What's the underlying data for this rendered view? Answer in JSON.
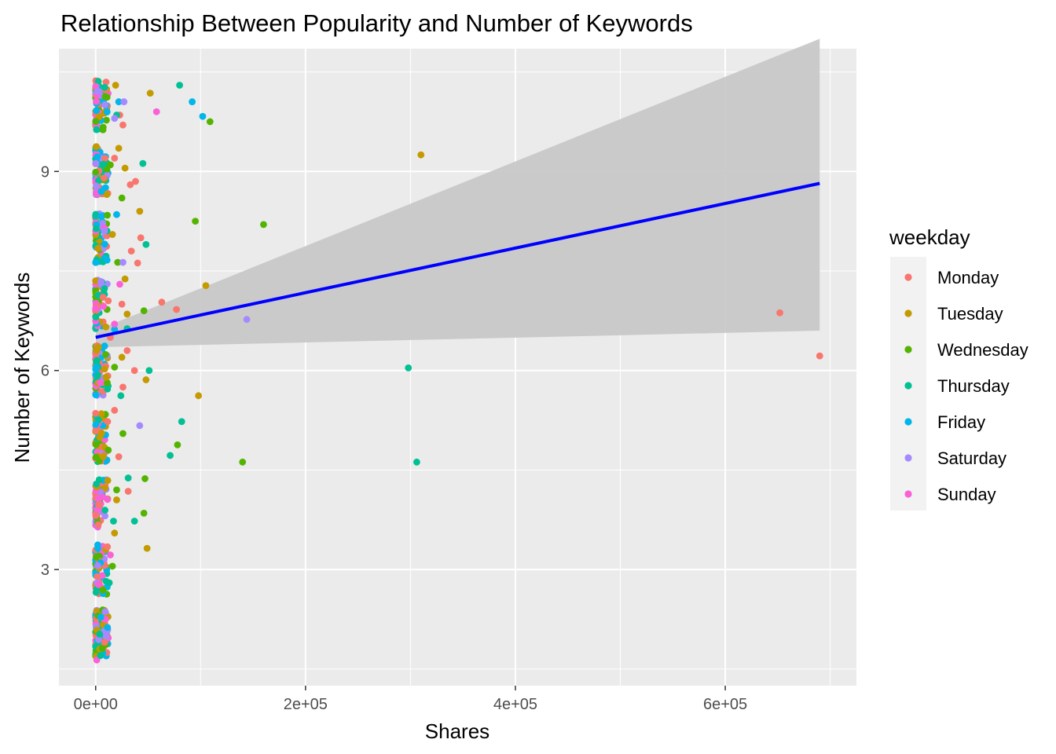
{
  "chart_data": {
    "type": "scatter",
    "title": "Relationship Between Popularity and Number of Keywords",
    "xlabel": "Shares",
    "ylabel": "Number of Keywords",
    "xlim": [
      -35000,
      725000
    ],
    "ylim": [
      1.25,
      10.85
    ],
    "x_ticks": [
      {
        "value": 0,
        "label": "0e+00"
      },
      {
        "value": 200000,
        "label": "2e+05"
      },
      {
        "value": 400000,
        "label": "4e+05"
      },
      {
        "value": 600000,
        "label": "6e+05"
      }
    ],
    "y_ticks": [
      {
        "value": 3,
        "label": "3"
      },
      {
        "value": 6,
        "label": "6"
      },
      {
        "value": 9,
        "label": "9"
      }
    ],
    "grid": true,
    "legend": {
      "title": "weekday",
      "placement": "right",
      "items": [
        {
          "label": "Monday",
          "color": "#F8766D"
        },
        {
          "label": "Tuesday",
          "color": "#C49A00"
        },
        {
          "label": "Wednesday",
          "color": "#53B400"
        },
        {
          "label": "Thursday",
          "color": "#00C094"
        },
        {
          "label": "Friday",
          "color": "#00B6EB"
        },
        {
          "label": "Saturday",
          "color": "#A58AFF"
        },
        {
          "label": "Sunday",
          "color": "#FB61D7"
        }
      ]
    },
    "trend_line": {
      "color": "#0000FF",
      "x": [
        0,
        690000
      ],
      "y": [
        6.5,
        8.82
      ]
    },
    "confidence_band": {
      "color": "#C8C8C8",
      "x": [
        0,
        690000
      ],
      "upper": [
        6.6,
        11.0
      ],
      "lower": [
        6.35,
        6.6
      ]
    },
    "dense_columns": [
      {
        "x_min": 0,
        "x_max": 12000,
        "y_min": 1.6,
        "y_max": 10.4
      }
    ],
    "series": [
      {
        "name": "Monday",
        "points": [
          [
            652000,
            6.87
          ],
          [
            690000,
            6.22
          ],
          [
            77000,
            6.92
          ],
          [
            63000,
            7.03
          ],
          [
            40000,
            7.62
          ],
          [
            43000,
            8.0
          ],
          [
            38000,
            8.85
          ],
          [
            33000,
            8.8
          ],
          [
            30000,
            6.3
          ],
          [
            37000,
            6.0
          ],
          [
            31000,
            4.18
          ],
          [
            26000,
            5.75
          ],
          [
            18000,
            5.4
          ],
          [
            22000,
            4.7
          ],
          [
            26000,
            9.7
          ],
          [
            18000,
            9.2
          ],
          [
            23000,
            9.85
          ],
          [
            12000,
            7.05
          ],
          [
            25000,
            7.0
          ],
          [
            34000,
            7.8
          ],
          [
            8000,
            8.9
          ],
          [
            14000,
            6.5
          ]
        ]
      },
      {
        "name": "Tuesday",
        "points": [
          [
            310000,
            9.25
          ],
          [
            98000,
            5.62
          ],
          [
            105000,
            7.28
          ],
          [
            52000,
            10.18
          ],
          [
            48000,
            5.86
          ],
          [
            49000,
            3.32
          ],
          [
            42000,
            8.4
          ],
          [
            28000,
            7.38
          ],
          [
            30000,
            6.85
          ],
          [
            22000,
            9.35
          ],
          [
            19000,
            10.3
          ],
          [
            28000,
            9.05
          ],
          [
            20000,
            4.05
          ],
          [
            25000,
            6.2
          ],
          [
            16000,
            8.05
          ],
          [
            10000,
            5.9
          ],
          [
            18000,
            3.55
          ]
        ]
      },
      {
        "name": "Wednesday",
        "points": [
          [
            160000,
            8.2
          ],
          [
            140000,
            4.62
          ],
          [
            109000,
            9.75
          ],
          [
            95000,
            8.25
          ],
          [
            78000,
            4.88
          ],
          [
            47000,
            4.37
          ],
          [
            46000,
            3.85
          ],
          [
            46000,
            6.9
          ],
          [
            26000,
            5.05
          ],
          [
            21000,
            7.63
          ],
          [
            16000,
            3.05
          ],
          [
            14000,
            9.1
          ],
          [
            18000,
            6.05
          ],
          [
            25000,
            8.6
          ],
          [
            12000,
            4.8
          ],
          [
            20000,
            4.2
          ]
        ]
      },
      {
        "name": "Thursday",
        "points": [
          [
            298000,
            6.04
          ],
          [
            306000,
            4.62
          ],
          [
            80000,
            10.3
          ],
          [
            82000,
            5.23
          ],
          [
            71000,
            4.72
          ],
          [
            48000,
            7.9
          ],
          [
            51000,
            6.0
          ],
          [
            45000,
            9.12
          ],
          [
            37000,
            3.73
          ],
          [
            31000,
            4.38
          ],
          [
            30000,
            6.63
          ],
          [
            24000,
            5.62
          ],
          [
            20000,
            9.85
          ],
          [
            17000,
            3.73
          ],
          [
            13000,
            2.8
          ]
        ]
      },
      {
        "name": "Friday",
        "points": [
          [
            92000,
            10.05
          ],
          [
            102000,
            9.83
          ],
          [
            20000,
            8.35
          ],
          [
            18000,
            6.62
          ],
          [
            22000,
            10.05
          ]
        ]
      },
      {
        "name": "Saturday",
        "points": [
          [
            144000,
            6.77
          ],
          [
            42000,
            5.17
          ],
          [
            27000,
            10.05
          ],
          [
            26000,
            7.63
          ],
          [
            18000,
            9.8
          ]
        ]
      },
      {
        "name": "Sunday",
        "points": [
          [
            58000,
            9.9
          ],
          [
            23000,
            7.3
          ],
          [
            14000,
            3.22
          ],
          [
            18000,
            6.7
          ]
        ]
      }
    ]
  }
}
